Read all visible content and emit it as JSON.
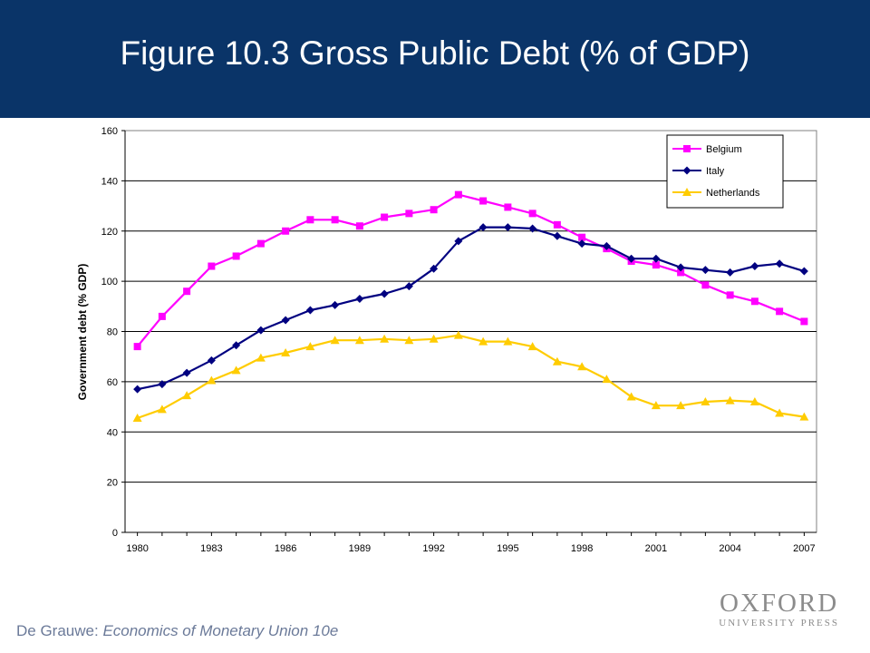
{
  "slide": {
    "title": "Figure 10.3 Gross Public Debt (% of GDP)",
    "footer_author": "De Grauwe: ",
    "footer_book": "Economics of Monetary Union 10e",
    "logo_line1": "OXFORD",
    "logo_line2": "UNIVERSITY PRESS",
    "header_color": "#0a3468"
  },
  "chart_data": {
    "type": "line",
    "title": "",
    "xlabel": "",
    "ylabel": "Government debt (% GDP)",
    "x": [
      1980,
      1981,
      1982,
      1983,
      1984,
      1985,
      1986,
      1987,
      1988,
      1989,
      1990,
      1991,
      1992,
      1993,
      1994,
      1995,
      1996,
      1997,
      1998,
      1999,
      2000,
      2001,
      2002,
      2003,
      2004,
      2005,
      2006,
      2007
    ],
    "x_tick_labels": [
      "1980",
      "1983",
      "1986",
      "1989",
      "1992",
      "1995",
      "1998",
      "2001",
      "2004",
      "2007"
    ],
    "ylim": [
      0,
      160
    ],
    "y_ticks": [
      0,
      20,
      40,
      60,
      80,
      100,
      120,
      140,
      160
    ],
    "grid": "horizontal",
    "legend_position": "top-right",
    "series": [
      {
        "name": "Belgium",
        "color": "#ff00ff",
        "marker": "square",
        "values": [
          74,
          86,
          96,
          106,
          110,
          115,
          120,
          124.5,
          124.5,
          122,
          125.5,
          127,
          128.5,
          134.5,
          132,
          129.5,
          127,
          122.5,
          117.5,
          113,
          108,
          106.5,
          103.5,
          98.5,
          94.5,
          92,
          88,
          84
        ]
      },
      {
        "name": "Italy",
        "color": "#000080",
        "marker": "diamond",
        "values": [
          57,
          59,
          63.5,
          68.5,
          74.5,
          80.5,
          84.5,
          88.5,
          90.5,
          93,
          95,
          98,
          105,
          116,
          121.5,
          121.5,
          121,
          118,
          115,
          114,
          109,
          109,
          105.5,
          104.5,
          103.5,
          106,
          107,
          104
        ]
      },
      {
        "name": "Netherlands",
        "color": "#ffcc00",
        "marker": "triangle",
        "values": [
          45.5,
          49,
          54.5,
          60.5,
          64.5,
          69.5,
          71.5,
          74,
          76.5,
          76.5,
          77,
          76.5,
          77,
          78.5,
          76,
          76,
          74,
          68,
          66,
          61,
          54,
          50.5,
          50.5,
          52,
          52.5,
          52,
          47.5,
          46
        ]
      }
    ]
  }
}
